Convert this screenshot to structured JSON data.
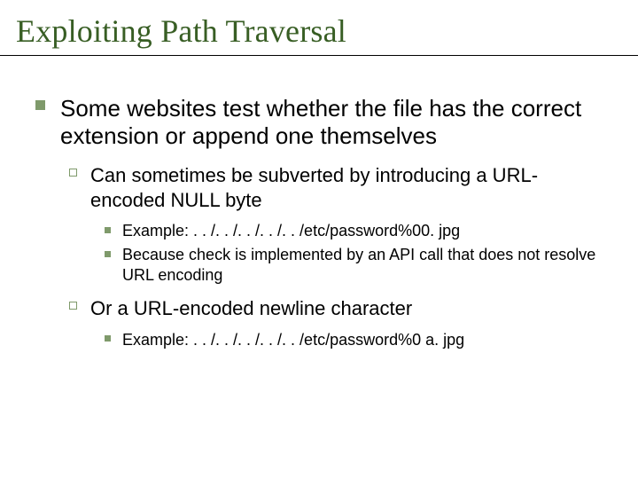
{
  "title": {
    "text": "Exploiting Path Traversal",
    "fontsize": 36,
    "color": "#385e24",
    "font_family": "Garamond, serif"
  },
  "colors": {
    "bullet_fill": "#7f9a6b",
    "bullet_outline": "#7f9a6b",
    "rule": "#000000",
    "text": "#000000",
    "background": "#ffffff"
  },
  "body": {
    "lvl1_fontsize": 26,
    "lvl2_fontsize": 22,
    "lvl3_fontsize": 18,
    "items": [
      {
        "text": "Some websites test whether the file has the correct extension or append one themselves",
        "children": [
          {
            "text": "Can sometimes be subverted by introducing a URL-encoded NULL byte",
            "children": [
              {
                "text": "Example: . . /. . /. . /. . /. . /etc/password%00. jpg"
              },
              {
                "text": "Because check is implemented by an API call that does not resolve URL encoding"
              }
            ]
          },
          {
            "text": "Or a URL-encoded newline character",
            "children": [
              {
                "text": "Example: . . /. . /. . /. . /. . /etc/password%0 a. jpg"
              }
            ]
          }
        ]
      }
    ]
  }
}
